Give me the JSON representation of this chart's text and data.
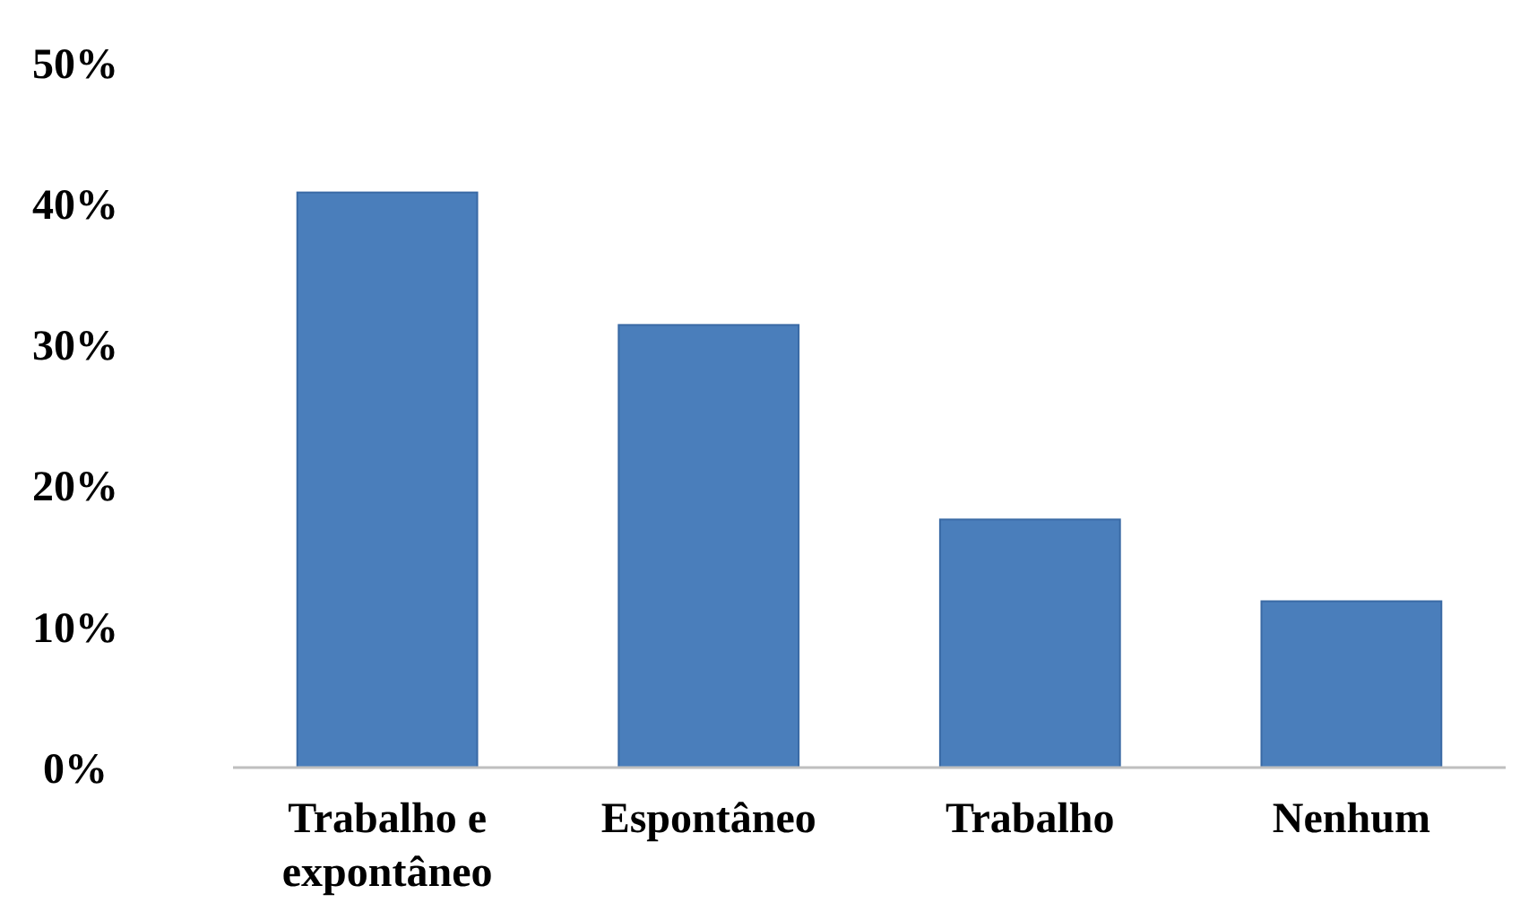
{
  "chart_data": {
    "type": "bar",
    "categories": [
      "Trabalho e expontâneo",
      "Espontâneo",
      "Trabalho",
      "Nenhum"
    ],
    "values": [
      40.8,
      31.4,
      17.6,
      11.8
    ],
    "color": "#4a7ebb",
    "ylim": [
      0,
      50
    ],
    "yticks": [
      {
        "value": 0,
        "label": "0%"
      },
      {
        "value": 10,
        "label": "10%"
      },
      {
        "value": 20,
        "label": "20%"
      },
      {
        "value": 30,
        "label": "30%"
      },
      {
        "value": 40,
        "label": "40%"
      },
      {
        "value": 50,
        "label": "50%"
      }
    ],
    "grid": false
  }
}
